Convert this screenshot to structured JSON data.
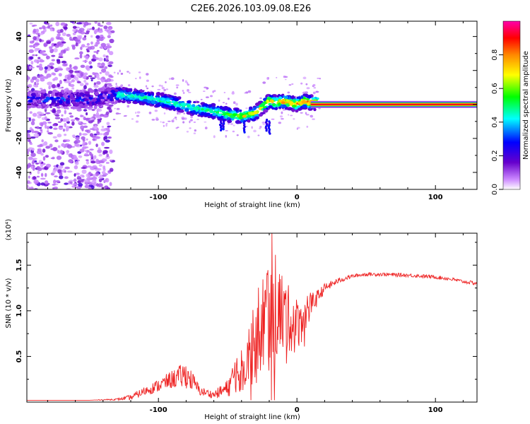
{
  "title": "C2E6.2026.103.09.08.E26",
  "chart_data": [
    {
      "type": "heatmap",
      "xlabel": "Height of straight line (km)",
      "ylabel": "Frequency (Hz)",
      "xlim": [
        -195,
        130
      ],
      "ylim": [
        -50,
        49
      ],
      "xticks": [
        -100,
        0,
        100
      ],
      "xtick_labels": [
        "-100",
        "0",
        "100"
      ],
      "yticks": [
        -40,
        -20,
        0,
        20,
        40
      ],
      "ytick_labels": [
        "-40",
        "-20",
        "0",
        "20",
        "40"
      ],
      "ridge": {
        "x": [
          -190,
          -170,
          -150,
          -130,
          -110,
          -90,
          -75,
          -60,
          -50,
          -40,
          -30,
          -20,
          -15,
          -10,
          -5,
          0,
          5,
          10,
          50,
          130
        ],
        "y": [
          3,
          3,
          3,
          6,
          4,
          1,
          -2,
          -4,
          -6,
          -7,
          -5,
          2,
          1,
          2,
          1,
          0,
          2,
          1,
          0,
          0
        ]
      },
      "steady_band": {
        "x_start": 10,
        "x_end": 130,
        "y": 0
      },
      "colorbar": {
        "label": "Normalized spectral amplitude",
        "range": [
          0,
          1
        ],
        "ticks": [
          0.0,
          0.2,
          0.4,
          0.6,
          0.8
        ],
        "tick_labels": [
          "0.0",
          "0.2",
          "0.4",
          "0.6",
          "0.8"
        ],
        "colors": [
          "#ffffff",
          "#cc88ff",
          "#6600cc",
          "#0000ff",
          "#00ffff",
          "#00ff00",
          "#ffff00",
          "#ff8800",
          "#ff0000",
          "#ff00aa"
        ]
      }
    },
    {
      "type": "line",
      "xlabel": "Height of straight line (km)",
      "ylabel": "SNR (10 * v/v)",
      "scale_label": "(x10⁴)",
      "xlim": [
        -195,
        130
      ],
      "ylim": [
        0,
        1.85
      ],
      "xticks": [
        -100,
        0,
        100
      ],
      "xtick_labels": [
        "-100",
        "0",
        "100"
      ],
      "yticks": [
        0.5,
        1.0,
        1.5
      ],
      "ytick_labels": [
        "0.5",
        "1.0",
        "1.5"
      ],
      "series": [
        {
          "name": "SNR",
          "color": "#ee2222",
          "envelope_x": [
            -195,
            -150,
            -130,
            -120,
            -110,
            -100,
            -90,
            -80,
            -75,
            -70,
            -60,
            -50,
            -45,
            -40,
            -35,
            -30,
            -25,
            -20,
            -18,
            -15,
            -12,
            -10,
            -5,
            0,
            5,
            10,
            15,
            20,
            30,
            40,
            50,
            60,
            80,
            100,
            110,
            120,
            130
          ],
          "envelope_y": [
            0.02,
            0.02,
            0.03,
            0.05,
            0.12,
            0.18,
            0.25,
            0.3,
            0.22,
            0.12,
            0.08,
            0.15,
            0.3,
            0.4,
            0.55,
            0.7,
            0.85,
            1.0,
            1.1,
            1.05,
            1.0,
            0.95,
            0.9,
            0.85,
            0.95,
            1.05,
            1.15,
            1.25,
            1.33,
            1.38,
            1.4,
            1.4,
            1.39,
            1.37,
            1.35,
            1.32,
            1.3
          ],
          "noise_amplitude_y": [
            0.0,
            0.0,
            0.01,
            0.03,
            0.05,
            0.07,
            0.1,
            0.15,
            0.1,
            0.05,
            0.04,
            0.1,
            0.2,
            0.3,
            0.4,
            0.5,
            0.55,
            0.7,
            0.75,
            0.6,
            0.5,
            0.45,
            0.35,
            0.3,
            0.25,
            0.15,
            0.08,
            0.05,
            0.03,
            0.02,
            0.02,
            0.02,
            0.02,
            0.02,
            0.02,
            0.02,
            0.02
          ],
          "peak": {
            "x": -18,
            "y": 1.85
          }
        }
      ]
    }
  ]
}
